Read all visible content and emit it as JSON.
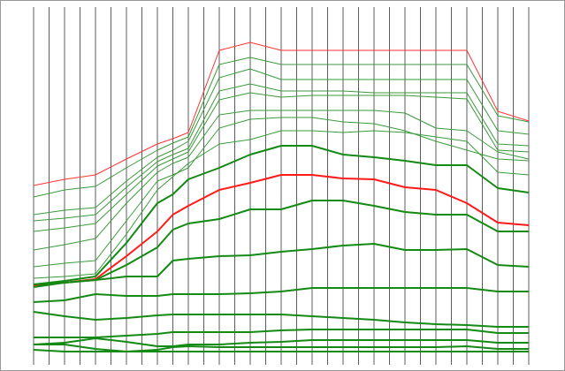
{
  "chart_data": {
    "type": "line",
    "x": [
      0,
      2,
      4,
      6,
      8,
      9,
      10,
      12,
      14,
      16,
      18,
      20,
      22,
      24,
      26,
      28,
      30,
      32
    ],
    "xlim": [
      0,
      32
    ],
    "xticks": [
      0,
      1,
      2,
      3,
      4,
      5,
      6,
      7,
      8,
      9,
      10,
      11,
      12,
      13,
      14,
      15,
      16,
      17,
      18,
      19,
      20,
      21,
      22,
      23,
      24,
      25,
      26,
      27,
      28,
      29,
      30,
      31,
      32
    ],
    "ylim": [
      0,
      420
    ],
    "grid": true,
    "series": [
      {
        "color": "#ff3333",
        "width": 1,
        "values": [
          210,
          217,
          222,
          240,
          257,
          263,
          270,
          363,
          372,
          363,
          363,
          363,
          363,
          363,
          363,
          363,
          294,
          283
        ]
      },
      {
        "color": "#3a9a3a",
        "width": 1,
        "values": [
          197,
          205,
          209,
          230,
          250,
          258,
          265,
          347,
          355,
          347,
          347,
          347,
          347,
          347,
          347,
          347,
          289,
          282
        ]
      },
      {
        "color": "#3a9a3a",
        "width": 1,
        "values": [
          177,
          182,
          185,
          215,
          242,
          250,
          260,
          332,
          342,
          330,
          330,
          330,
          330,
          330,
          330,
          330,
          272,
          268
        ]
      },
      {
        "color": "#3a9a3a",
        "width": 1,
        "values": [
          170,
          173,
          177,
          208,
          237,
          245,
          252,
          317,
          325,
          317,
          317,
          317,
          315,
          315,
          315,
          315,
          257,
          255
        ]
      },
      {
        "color": "#3a9a3a",
        "width": 1,
        "values": [
          158,
          162,
          167,
          200,
          232,
          240,
          248,
          307,
          315,
          310,
          312,
          312,
          312,
          312,
          310,
          308,
          250,
          248
        ]
      },
      {
        "color": "#3a9a3a",
        "width": 1,
        "values": [
          137,
          143,
          150,
          190,
          225,
          235,
          242,
          290,
          295,
          295,
          295,
          295,
          295,
          292,
          275,
          272,
          248,
          240
        ]
      },
      {
        "color": "#3a9a3a",
        "width": 1,
        "values": [
          118,
          122,
          125,
          170,
          215,
          222,
          230,
          275,
          285,
          287,
          287,
          282,
          280,
          272,
          260,
          250,
          240,
          238
        ]
      },
      {
        "color": "#3a9a3a",
        "width": 1,
        "values": [
          105,
          107,
          110,
          155,
          205,
          220,
          235,
          257,
          262,
          272,
          272,
          270,
          272,
          270,
          265,
          260,
          225,
          222
        ]
      },
      {
        "color": "#138a13",
        "width": 2,
        "values": [
          98,
          102,
          107,
          145,
          190,
          200,
          217,
          230,
          245,
          255,
          255,
          245,
          242,
          238,
          233,
          233,
          207,
          202
        ]
      },
      {
        "color": "#ff1a1a",
        "width": 2,
        "values": [
          97,
          100,
          104,
          130,
          158,
          177,
          187,
          205,
          213,
          222,
          222,
          218,
          217,
          208,
          205,
          190,
          168,
          165
        ]
      },
      {
        "color": "#138a13",
        "width": 2,
        "values": [
          95,
          100,
          103,
          120,
          140,
          160,
          167,
          172,
          183,
          183,
          193,
          193,
          187,
          180,
          177,
          177,
          158,
          158
        ]
      },
      {
        "color": "#138a13",
        "width": 2,
        "values": [
          98,
          100,
          103,
          107,
          107,
          125,
          127,
          130,
          131,
          135,
          138,
          142,
          144,
          137,
          137,
          138,
          120,
          118
        ]
      },
      {
        "color": "#138a13",
        "width": 2,
        "values": [
          78,
          80,
          87,
          85,
          85,
          87,
          87,
          87,
          88,
          90,
          94,
          94,
          94,
          94,
          94,
          94,
          90,
          90
        ]
      },
      {
        "color": "#138a13",
        "width": 2,
        "values": [
          67,
          62,
          58,
          60,
          63,
          64,
          64,
          64,
          64,
          64,
          62,
          60,
          58,
          55,
          53,
          52,
          50,
          50
        ]
      },
      {
        "color": "#138a13",
        "width": 2,
        "values": [
          38,
          38,
          38,
          40,
          42,
          44,
          44,
          44,
          44,
          46,
          47,
          47,
          47,
          47,
          47,
          47,
          43,
          43
        ]
      },
      {
        "color": "#138a13",
        "width": 2,
        "values": [
          30,
          32,
          37,
          33,
          28,
          28,
          30,
          30,
          32,
          33,
          35,
          35,
          35,
          35,
          35,
          35,
          32,
          32
        ]
      },
      {
        "color": "#138a13",
        "width": 2,
        "values": [
          30,
          30,
          25,
          22,
          24,
          27,
          28,
          27,
          27,
          27,
          27,
          27,
          27,
          27,
          27,
          28,
          25,
          25
        ]
      },
      {
        "color": "#138a13",
        "width": 2,
        "values": [
          24,
          22,
          22,
          22,
          22,
          22,
          22,
          22,
          22,
          22,
          22,
          22,
          22,
          22,
          22,
          22,
          22,
          22
        ]
      }
    ]
  }
}
